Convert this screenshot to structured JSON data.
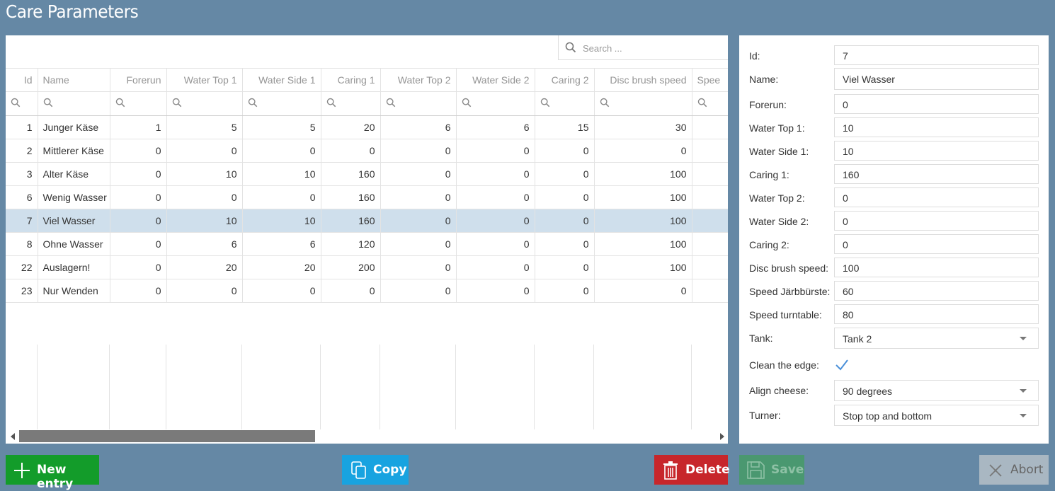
{
  "page": {
    "title": "Care Parameters"
  },
  "grid": {
    "search_placeholder": "Search ...",
    "columns": [
      "Id",
      "Name",
      "Forerun",
      "Water Top 1",
      "Water Side 1",
      "Caring 1",
      "Water Top 2",
      "Water Side 2",
      "Caring 2",
      "Disc brush speed",
      "Spee"
    ],
    "rows": [
      [
        "1",
        "Junger Käse",
        "1",
        "5",
        "5",
        "20",
        "6",
        "6",
        "15",
        "30"
      ],
      [
        "2",
        "Mittlerer Käse",
        "0",
        "0",
        "0",
        "0",
        "0",
        "0",
        "0",
        "0"
      ],
      [
        "3",
        "Alter Käse",
        "0",
        "10",
        "10",
        "160",
        "0",
        "0",
        "0",
        "100"
      ],
      [
        "6",
        "Wenig Wasser",
        "0",
        "0",
        "0",
        "160",
        "0",
        "0",
        "0",
        "100"
      ],
      [
        "7",
        "Viel Wasser",
        "0",
        "10",
        "10",
        "160",
        "0",
        "0",
        "0",
        "100"
      ],
      [
        "8",
        "Ohne Wasser",
        "0",
        "6",
        "6",
        "120",
        "0",
        "0",
        "0",
        "100"
      ],
      [
        "22",
        "Auslagern!",
        "0",
        "20",
        "20",
        "200",
        "0",
        "0",
        "0",
        "100"
      ],
      [
        "23",
        "Nur Wenden",
        "0",
        "0",
        "0",
        "0",
        "0",
        "0",
        "0",
        "0"
      ]
    ],
    "selected_row_index": 4
  },
  "form": {
    "fields": [
      {
        "label": "Id:",
        "value": "7"
      },
      {
        "label": "Name:",
        "value": "Viel Wasser"
      },
      {
        "label": "Forerun:",
        "value": "0"
      },
      {
        "label": "Water Top 1:",
        "value": "10"
      },
      {
        "label": "Water Side 1:",
        "value": "10"
      },
      {
        "label": "Caring 1:",
        "value": "160"
      },
      {
        "label": "Water Top 2:",
        "value": "0"
      },
      {
        "label": "Water Side 2:",
        "value": "0"
      },
      {
        "label": "Caring 2:",
        "value": "0"
      },
      {
        "label": "Disc brush speed:",
        "value": "100"
      },
      {
        "label": "Speed Järbbürste:",
        "value": "60"
      },
      {
        "label": "Speed turntable:",
        "value": "80"
      }
    ],
    "tank": {
      "label": "Tank:",
      "value": "Tank 2"
    },
    "clean_edge": {
      "label": "Clean the edge:",
      "checked": true
    },
    "align_cheese": {
      "label": "Align cheese:",
      "value": "90 degrees"
    },
    "turner": {
      "label": "Turner:",
      "value": "Stop top and bottom"
    }
  },
  "buttons": {
    "new_entry": "New entry",
    "copy": "Copy",
    "delete": "Delete",
    "save": "Save",
    "abort": "Abort"
  },
  "colors": {
    "background": "#6588a5",
    "selected_row": "#cfdfec",
    "new_entry": "#139c2a",
    "copy": "#18a3e0",
    "delete": "#c7262b",
    "save_disabled": "#4a9870",
    "abort_disabled": "#a9b7c2",
    "checkmark": "#4a90d9"
  },
  "icons": {
    "search": "search-icon",
    "filter": "search-icon",
    "new_entry": "plus-icon",
    "copy": "copy-icon",
    "delete": "trash-icon",
    "save": "floppy-disk-icon",
    "abort": "close-icon",
    "checkbox": "checkmark-icon",
    "dropdown": "chevron-down-icon"
  }
}
